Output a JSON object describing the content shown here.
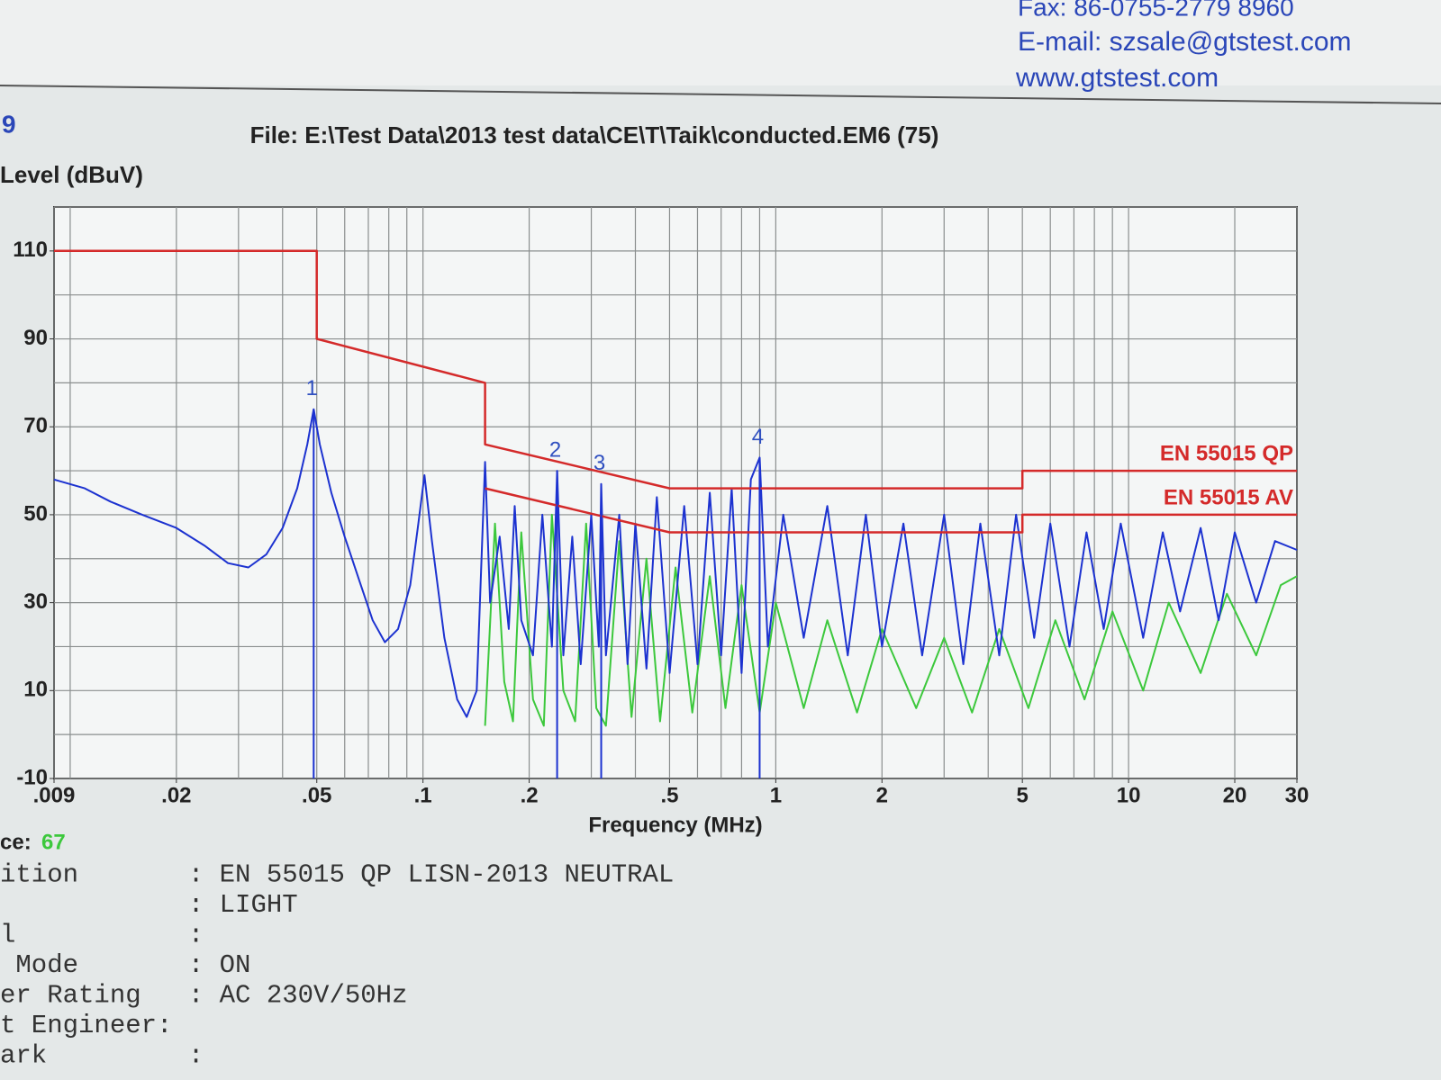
{
  "header": {
    "fax": "Fax: 86-0755-2779 8960",
    "email": "E-mail: szsale@gtstest.com",
    "web": "www.gtstest.com",
    "corner": "9"
  },
  "chart_data": {
    "type": "line",
    "title": "File: E:\\Test Data\\2013 test data\\CE\\T\\Taik\\conducted.EM6  (75)",
    "ylabel": "Level (dBuV)",
    "xlabel": "Frequency (MHz)",
    "xlog": true,
    "xlim": [
      0.009,
      30
    ],
    "ylim": [
      -10,
      120
    ],
    "xticks": [
      {
        "value": 0.009,
        "label": ".009"
      },
      {
        "value": 0.02,
        "label": ".02"
      },
      {
        "value": 0.05,
        "label": ".05"
      },
      {
        "value": 0.1,
        "label": ".1"
      },
      {
        "value": 0.2,
        "label": ".2"
      },
      {
        "value": 0.5,
        "label": ".5"
      },
      1,
      2,
      5,
      10,
      20,
      30
    ],
    "yticks": [
      -10,
      10,
      30,
      50,
      70,
      90,
      110
    ],
    "xgrid": [
      0.009,
      0.01,
      0.02,
      0.03,
      0.04,
      0.05,
      0.06,
      0.07,
      0.08,
      0.09,
      0.1,
      0.2,
      0.3,
      0.4,
      0.5,
      0.6,
      0.7,
      0.8,
      0.9,
      1,
      2,
      3,
      4,
      5,
      6,
      7,
      8,
      9,
      10,
      20,
      30
    ],
    "ygrid": [
      -10,
      0,
      10,
      20,
      30,
      40,
      50,
      60,
      70,
      80,
      90,
      100,
      110,
      120
    ],
    "grid": true,
    "series": [
      {
        "color": "#3cc83c",
        "x": [
          0.15,
          0.16,
          0.17,
          0.18,
          0.19,
          0.205,
          0.22,
          0.232,
          0.25,
          0.27,
          0.29,
          0.31,
          0.33,
          0.36,
          0.39,
          0.43,
          0.47,
          0.52,
          0.58,
          0.65,
          0.72,
          0.8,
          0.9,
          1.0,
          1.2,
          1.4,
          1.7,
          2.0,
          2.5,
          3.0,
          3.6,
          4.3,
          5.2,
          6.2,
          7.5,
          9,
          11,
          13,
          16,
          19,
          23,
          27,
          30
        ],
        "values": [
          2,
          48,
          12,
          3,
          46,
          8,
          2,
          50,
          10,
          3,
          48,
          6,
          2,
          44,
          4,
          40,
          3,
          38,
          5,
          36,
          6,
          34,
          5,
          30,
          6,
          26,
          5,
          24,
          6,
          22,
          5,
          24,
          6,
          26,
          8,
          28,
          10,
          30,
          14,
          32,
          18,
          34,
          36
        ]
      },
      {
        "color": "#1c32d0",
        "x": [
          0.009,
          0.011,
          0.013,
          0.016,
          0.02,
          0.024,
          0.028,
          0.032,
          0.036,
          0.04,
          0.044,
          0.047,
          0.049,
          0.051,
          0.055,
          0.06,
          0.066,
          0.072,
          0.078,
          0.085,
          0.092,
          0.097,
          0.101,
          0.106,
          0.115,
          0.125,
          0.133,
          0.142,
          0.15,
          0.155,
          0.165,
          0.175,
          0.182,
          0.19,
          0.205,
          0.218,
          0.232,
          0.24,
          0.25,
          0.265,
          0.28,
          0.3,
          0.315,
          0.32,
          0.33,
          0.36,
          0.38,
          0.4,
          0.43,
          0.46,
          0.5,
          0.55,
          0.6,
          0.65,
          0.7,
          0.75,
          0.8,
          0.85,
          0.9,
          0.95,
          1.05,
          1.2,
          1.4,
          1.6,
          1.8,
          2.0,
          2.3,
          2.6,
          3.0,
          3.4,
          3.8,
          4.3,
          4.8,
          5.4,
          6.0,
          6.8,
          7.6,
          8.5,
          9.5,
          11,
          12.5,
          14,
          16,
          18,
          20,
          23,
          26,
          30
        ],
        "values": [
          58,
          56,
          53,
          50,
          47,
          43,
          39,
          38,
          41,
          47,
          56,
          66,
          74,
          66,
          55,
          45,
          35,
          26,
          21,
          24,
          34,
          48,
          59,
          44,
          22,
          8,
          4,
          10,
          62,
          30,
          45,
          24,
          52,
          26,
          18,
          50,
          20,
          60,
          18,
          45,
          16,
          50,
          20,
          57,
          18,
          50,
          16,
          48,
          15,
          54,
          14,
          52,
          16,
          55,
          18,
          56,
          14,
          58,
          63,
          20,
          50,
          22,
          52,
          18,
          50,
          20,
          48,
          18,
          50,
          16,
          48,
          18,
          50,
          22,
          48,
          20,
          46,
          24,
          48,
          22,
          46,
          28,
          47,
          26,
          46,
          30,
          44,
          42
        ]
      },
      {
        "name": "EN 55015 QP",
        "color": "#d42a2a",
        "x": [
          0.009,
          0.05,
          0.05,
          0.15,
          0.15,
          0.5,
          5,
          5,
          30
        ],
        "values": [
          110,
          110,
          90,
          80,
          66,
          56,
          56,
          60,
          60
        ]
      },
      {
        "name": "EN 55015 AV",
        "color": "#d42a2a",
        "x": [
          0.15,
          0.5,
          5,
          5,
          30
        ],
        "values": [
          56,
          46,
          46,
          50,
          50
        ]
      }
    ],
    "markers": [
      {
        "label": 1,
        "x": 0.049,
        "y": 74
      },
      {
        "label": 2,
        "x": 0.24,
        "y": 60
      },
      {
        "label": 3,
        "x": 0.32,
        "y": 57
      },
      {
        "label": 4,
        "x": 0.9,
        "y": 63
      }
    ]
  },
  "trace": {
    "label": "ce:",
    "value": 67
  },
  "info": [
    "ition       : EN 55015 QP LISN-2013 NEUTRAL",
    "            : LIGHT",
    "l           :",
    " Mode       : ON",
    "er Rating   : AC 230V/50Hz",
    "t Engineer:",
    "ark         :"
  ]
}
